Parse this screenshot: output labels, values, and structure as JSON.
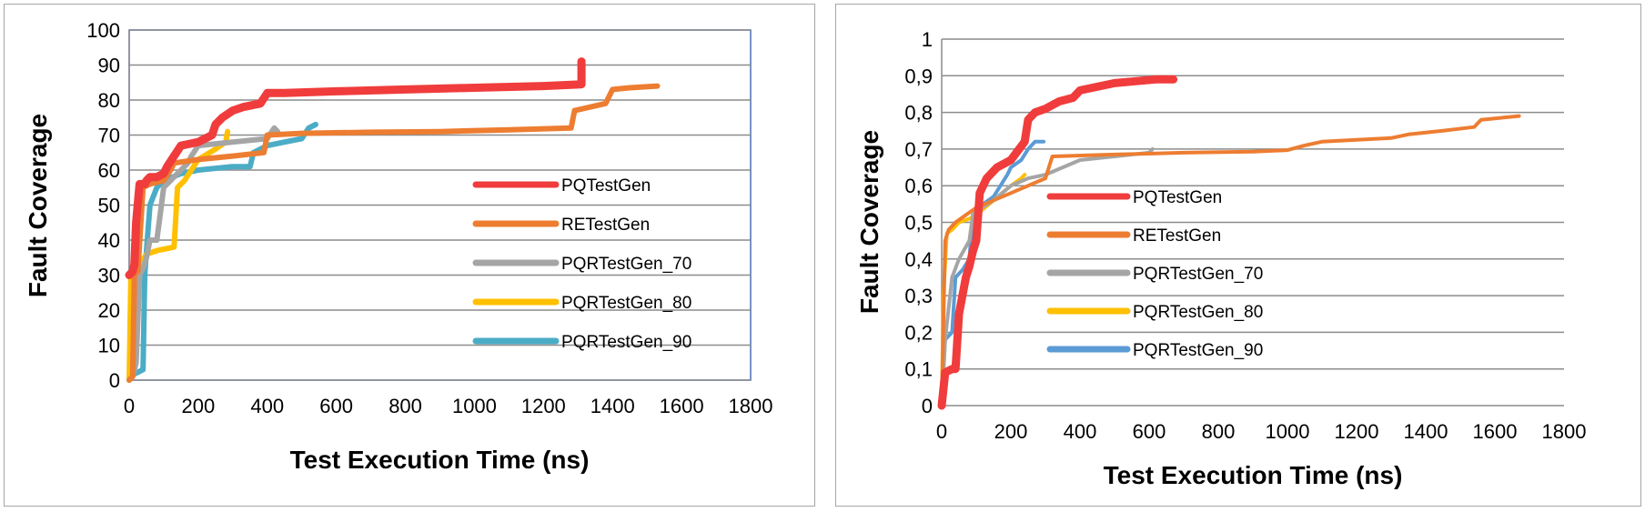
{
  "chart_data": [
    {
      "type": "line",
      "xlabel": "Test Execution Time (ns)",
      "ylabel": "Fault Coverage",
      "xlim": [
        0,
        1800
      ],
      "ylim": [
        0,
        100
      ],
      "xticks": [
        0,
        200,
        400,
        600,
        800,
        1000,
        1200,
        1400,
        1600,
        1800
      ],
      "yticks": [
        0,
        10,
        20,
        30,
        40,
        50,
        60,
        70,
        80,
        90,
        100
      ],
      "xtick_labels": [
        "0",
        "200",
        "400",
        "600",
        "800",
        "1000",
        "1200",
        "1400",
        "1600",
        "1800"
      ],
      "ytick_labels": [
        "0",
        "10",
        "20",
        "30",
        "40",
        "50",
        "60",
        "70",
        "80",
        "90",
        "100"
      ],
      "grid": "horizontal",
      "legend_position": "right",
      "series": [
        {
          "name": "PQTestGen",
          "color": "#f03c3c",
          "points": [
            [
              0,
              30
            ],
            [
              10,
              31
            ],
            [
              15,
              33
            ],
            [
              20,
              45
            ],
            [
              30,
              56
            ],
            [
              45,
              56
            ],
            [
              50,
              57
            ],
            [
              60,
              58
            ],
            [
              80,
              58
            ],
            [
              100,
              59
            ],
            [
              110,
              61
            ],
            [
              130,
              64
            ],
            [
              150,
              67
            ],
            [
              200,
              68
            ],
            [
              240,
              70
            ],
            [
              250,
              73
            ],
            [
              270,
              75
            ],
            [
              300,
              77
            ],
            [
              330,
              78
            ],
            [
              380,
              79
            ],
            [
              400,
              82
            ],
            [
              450,
              82
            ],
            [
              600,
              82.5
            ],
            [
              800,
              83
            ],
            [
              1000,
              83.5
            ],
            [
              1200,
              84
            ],
            [
              1310,
              84.5
            ],
            [
              1310,
              91
            ]
          ]
        },
        {
          "name": "RETestGen",
          "color": "#ed7d31",
          "points": [
            [
              0,
              0
            ],
            [
              10,
              1
            ],
            [
              15,
              30
            ],
            [
              25,
              31
            ],
            [
              40,
              55
            ],
            [
              60,
              56
            ],
            [
              100,
              57
            ],
            [
              120,
              60
            ],
            [
              130,
              62
            ],
            [
              200,
              63
            ],
            [
              300,
              64
            ],
            [
              390,
              65
            ],
            [
              400,
              70
            ],
            [
              500,
              70.5
            ],
            [
              700,
              70.8
            ],
            [
              900,
              71
            ],
            [
              1100,
              71.5
            ],
            [
              1280,
              72
            ],
            [
              1290,
              77
            ],
            [
              1380,
              79
            ],
            [
              1400,
              83
            ],
            [
              1450,
              83.5
            ],
            [
              1530,
              84
            ]
          ]
        },
        {
          "name": "PQRTestGen_70",
          "color": "#a5a5a5",
          "points": [
            [
              0,
              0
            ],
            [
              10,
              1
            ],
            [
              20,
              5
            ],
            [
              30,
              30
            ],
            [
              40,
              32
            ],
            [
              50,
              35
            ],
            [
              60,
              40
            ],
            [
              80,
              40
            ],
            [
              100,
              55
            ],
            [
              130,
              58
            ],
            [
              150,
              60
            ],
            [
              170,
              62
            ],
            [
              180,
              64
            ],
            [
              200,
              67
            ],
            [
              300,
              68
            ],
            [
              400,
              69
            ],
            [
              420,
              72
            ],
            [
              430,
              71
            ]
          ]
        },
        {
          "name": "PQRTestGen_80",
          "color": "#ffc000",
          "points": [
            [
              0,
              0
            ],
            [
              5,
              30
            ],
            [
              20,
              31
            ],
            [
              30,
              33
            ],
            [
              50,
              36
            ],
            [
              80,
              37
            ],
            [
              130,
              38
            ],
            [
              140,
              55
            ],
            [
              160,
              57
            ],
            [
              180,
              60
            ],
            [
              200,
              63
            ],
            [
              250,
              66
            ],
            [
              280,
              68
            ],
            [
              285,
              71
            ]
          ]
        },
        {
          "name": "PQRTestGen_90",
          "color": "#4bacc6",
          "points": [
            [
              0,
              1
            ],
            [
              20,
              2
            ],
            [
              40,
              3
            ],
            [
              45,
              30
            ],
            [
              50,
              37
            ],
            [
              60,
              50
            ],
            [
              80,
              55
            ],
            [
              100,
              57
            ],
            [
              150,
              59
            ],
            [
              200,
              60
            ],
            [
              300,
              61
            ],
            [
              350,
              61
            ],
            [
              360,
              65
            ],
            [
              400,
              67
            ],
            [
              450,
              68
            ],
            [
              500,
              69
            ],
            [
              520,
              72
            ],
            [
              540,
              73
            ]
          ]
        }
      ]
    },
    {
      "type": "line",
      "xlabel": "Test Execution Time (ns)",
      "ylabel": "Fault Coverage",
      "xlim": [
        0,
        1800
      ],
      "ylim": [
        0,
        1
      ],
      "xticks": [
        0,
        200,
        400,
        600,
        800,
        1000,
        1200,
        1400,
        1600,
        1800
      ],
      "yticks": [
        0,
        0.1,
        0.2,
        0.3,
        0.4,
        0.5,
        0.6,
        0.7,
        0.8,
        0.9,
        1
      ],
      "xtick_labels": [
        "0",
        "200",
        "400",
        "600",
        "800",
        "1000",
        "1200",
        "1400",
        "1600",
        "1800"
      ],
      "ytick_labels": [
        "0",
        "0,1",
        "0,2",
        "0,3",
        "0,4",
        "0,5",
        "0,6",
        "0,7",
        "0,8",
        "0,9",
        "1"
      ],
      "grid": "horizontal",
      "legend_position": "right",
      "series": [
        {
          "name": "PQTestGen",
          "color": "#f03c3c",
          "points": [
            [
              0,
              0
            ],
            [
              10,
              0.09
            ],
            [
              30,
              0.1
            ],
            [
              40,
              0.1
            ],
            [
              50,
              0.25
            ],
            [
              60,
              0.3
            ],
            [
              70,
              0.35
            ],
            [
              80,
              0.38
            ],
            [
              90,
              0.42
            ],
            [
              100,
              0.45
            ],
            [
              110,
              0.58
            ],
            [
              130,
              0.62
            ],
            [
              160,
              0.65
            ],
            [
              200,
              0.67
            ],
            [
              240,
              0.72
            ],
            [
              250,
              0.78
            ],
            [
              270,
              0.8
            ],
            [
              300,
              0.81
            ],
            [
              340,
              0.83
            ],
            [
              380,
              0.84
            ],
            [
              400,
              0.86
            ],
            [
              450,
              0.87
            ],
            [
              500,
              0.88
            ],
            [
              560,
              0.885
            ],
            [
              620,
              0.89
            ],
            [
              670,
              0.89
            ]
          ]
        },
        {
          "name": "RETestGen",
          "color": "#ed7d31",
          "points": [
            [
              0,
              0
            ],
            [
              10,
              0.45
            ],
            [
              20,
              0.48
            ],
            [
              40,
              0.5
            ],
            [
              70,
              0.52
            ],
            [
              100,
              0.54
            ],
            [
              150,
              0.56
            ],
            [
              200,
              0.58
            ],
            [
              250,
              0.6
            ],
            [
              300,
              0.62
            ],
            [
              320,
              0.68
            ],
            [
              500,
              0.685
            ],
            [
              700,
              0.69
            ],
            [
              900,
              0.693
            ],
            [
              1000,
              0.697
            ],
            [
              1050,
              0.71
            ],
            [
              1100,
              0.72
            ],
            [
              1200,
              0.725
            ],
            [
              1300,
              0.73
            ],
            [
              1350,
              0.74
            ],
            [
              1450,
              0.75
            ],
            [
              1540,
              0.76
            ],
            [
              1560,
              0.78
            ],
            [
              1670,
              0.79
            ]
          ]
        },
        {
          "name": "PQRTestGen_70",
          "color": "#a5a5a5",
          "points": [
            [
              0,
              0
            ],
            [
              10,
              0.18
            ],
            [
              30,
              0.35
            ],
            [
              50,
              0.4
            ],
            [
              80,
              0.45
            ],
            [
              90,
              0.52
            ],
            [
              100,
              0.53
            ],
            [
              150,
              0.56
            ],
            [
              200,
              0.6
            ],
            [
              250,
              0.62
            ],
            [
              300,
              0.63
            ],
            [
              350,
              0.65
            ],
            [
              400,
              0.67
            ],
            [
              500,
              0.68
            ],
            [
              600,
              0.69
            ],
            [
              610,
              0.7
            ]
          ]
        },
        {
          "name": "PQRTestGen_80",
          "color": "#ffc000",
          "points": [
            [
              0,
              0
            ],
            [
              5,
              0.3
            ],
            [
              15,
              0.47
            ],
            [
              30,
              0.48
            ],
            [
              50,
              0.5
            ],
            [
              80,
              0.51
            ],
            [
              100,
              0.52
            ],
            [
              150,
              0.56
            ],
            [
              200,
              0.6
            ],
            [
              230,
              0.62
            ],
            [
              240,
              0.63
            ]
          ]
        },
        {
          "name": "PQRTestGen_90",
          "color": "#5b9bd5",
          "points": [
            [
              0,
              0
            ],
            [
              10,
              0.18
            ],
            [
              30,
              0.2
            ],
            [
              40,
              0.35
            ],
            [
              60,
              0.37
            ],
            [
              80,
              0.4
            ],
            [
              90,
              0.52
            ],
            [
              120,
              0.55
            ],
            [
              150,
              0.57
            ],
            [
              170,
              0.6
            ],
            [
              190,
              0.63
            ],
            [
              200,
              0.65
            ],
            [
              230,
              0.67
            ],
            [
              250,
              0.7
            ],
            [
              270,
              0.72
            ],
            [
              295,
              0.72
            ]
          ]
        }
      ]
    }
  ]
}
